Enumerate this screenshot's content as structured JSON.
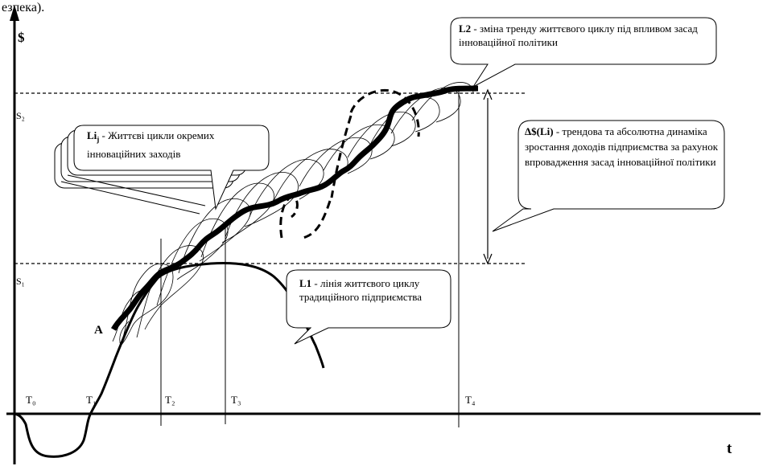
{
  "top_fragment": "езпека).",
  "axes": {
    "y_label": "$",
    "x_label": "t"
  },
  "levels": {
    "s2": "S₂",
    "s1": "S₁"
  },
  "times": {
    "t0": "T₀",
    "t1": "T₁",
    "t2": "T₂",
    "t3": "T₃",
    "t4": "T₄"
  },
  "point_a": "A",
  "callouts": {
    "l2": {
      "title": "L2",
      "text": " - зміна тренду життєвого циклу під впливом засад інноваційної політики"
    },
    "li": {
      "title": "Li",
      "sub": "j",
      "text": " - Життєві цикли окремих інноваційних заходів"
    },
    "delta": {
      "title": "Δ$(Li)",
      "text": " - трендова та абсолютна динаміка зростання доходів підприємства за рахунок впровадження засад інноваційної політики"
    },
    "l1": {
      "title": "L1",
      "text": " - лінія життєвого циклу традиційного підприємства"
    }
  }
}
